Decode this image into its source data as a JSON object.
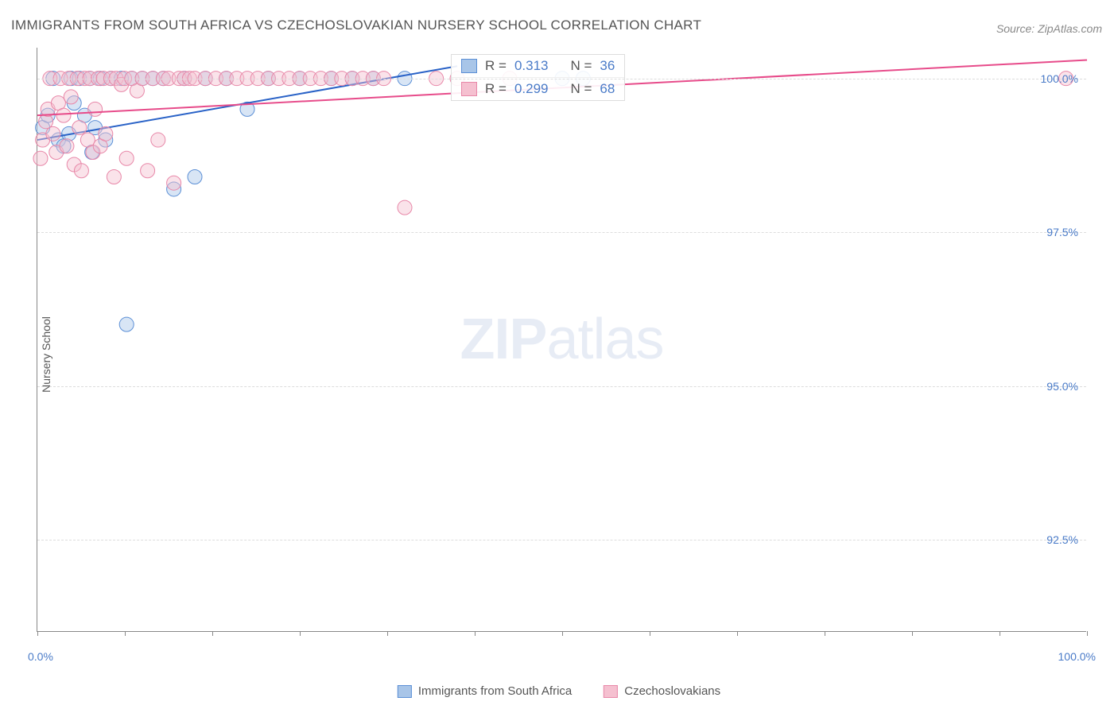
{
  "title": "IMMIGRANTS FROM SOUTH AFRICA VS CZECHOSLOVAKIAN NURSERY SCHOOL CORRELATION CHART",
  "source": "Source: ZipAtlas.com",
  "y_axis_label": "Nursery School",
  "watermark_bold": "ZIP",
  "watermark_light": "atlas",
  "chart": {
    "type": "scatter",
    "background_color": "#ffffff",
    "grid_color": "#dddddd",
    "axis_color": "#888888",
    "xlim": [
      0,
      100
    ],
    "ylim": [
      91.0,
      100.5
    ],
    "x_ticks": [
      0,
      8.3,
      16.7,
      25,
      33.3,
      41.7,
      50,
      58.3,
      66.7,
      75,
      83.3,
      91.7,
      100
    ],
    "x_tick_labels": {
      "first": "0.0%",
      "last": "100.0%"
    },
    "y_gridlines": [
      92.5,
      95.0,
      97.5,
      100.0
    ],
    "y_tick_labels": [
      "92.5%",
      "95.0%",
      "97.5%",
      "100.0%"
    ],
    "marker_radius": 9,
    "marker_opacity": 0.45,
    "line_width": 2,
    "series": [
      {
        "name": "Immigrants from South Africa",
        "color_fill": "#a8c5e8",
        "color_stroke": "#5b8fd6",
        "line_color": "#2962c7",
        "r_value": "0.313",
        "n_value": "36",
        "trend": {
          "x1": 0,
          "y1": 99.0,
          "x2": 40,
          "y2": 100.2
        },
        "points": [
          [
            0.5,
            99.2
          ],
          [
            1,
            99.4
          ],
          [
            1.5,
            100.0
          ],
          [
            2,
            99.0
          ],
          [
            2.5,
            98.9
          ],
          [
            3,
            99.1
          ],
          [
            3.2,
            100.0
          ],
          [
            3.5,
            99.6
          ],
          [
            4,
            100.0
          ],
          [
            4.5,
            99.4
          ],
          [
            5,
            100.0
          ],
          [
            5.2,
            98.8
          ],
          [
            5.5,
            99.2
          ],
          [
            6,
            100.0
          ],
          [
            6.5,
            99.0
          ],
          [
            7,
            100.0
          ],
          [
            8,
            100.0
          ],
          [
            8.5,
            96.0
          ],
          [
            9,
            100.0
          ],
          [
            10,
            100.0
          ],
          [
            11,
            100.0
          ],
          [
            12,
            100.0
          ],
          [
            13,
            98.2
          ],
          [
            14,
            100.0
          ],
          [
            15,
            98.4
          ],
          [
            16,
            100.0
          ],
          [
            18,
            100.0
          ],
          [
            20,
            99.5
          ],
          [
            22,
            100.0
          ],
          [
            25,
            100.0
          ],
          [
            28,
            100.0
          ],
          [
            30,
            100.0
          ],
          [
            32,
            100.0
          ],
          [
            35,
            100.0
          ],
          [
            50,
            100.0
          ],
          [
            52,
            100.0
          ]
        ]
      },
      {
        "name": "Czechoslovakians",
        "color_fill": "#f5c0d0",
        "color_stroke": "#e887a8",
        "line_color": "#e74b8a",
        "r_value": "0.299",
        "n_value": "68",
        "trend": {
          "x1": 0,
          "y1": 99.4,
          "x2": 100,
          "y2": 100.3
        },
        "points": [
          [
            0.3,
            98.7
          ],
          [
            0.5,
            99.0
          ],
          [
            0.8,
            99.3
          ],
          [
            1,
            99.5
          ],
          [
            1.2,
            100.0
          ],
          [
            1.5,
            99.1
          ],
          [
            1.8,
            98.8
          ],
          [
            2,
            99.6
          ],
          [
            2.2,
            100.0
          ],
          [
            2.5,
            99.4
          ],
          [
            2.8,
            98.9
          ],
          [
            3,
            100.0
          ],
          [
            3.2,
            99.7
          ],
          [
            3.5,
            98.6
          ],
          [
            3.8,
            100.0
          ],
          [
            4,
            99.2
          ],
          [
            4.2,
            98.5
          ],
          [
            4.5,
            100.0
          ],
          [
            4.8,
            99.0
          ],
          [
            5,
            100.0
          ],
          [
            5.3,
            98.8
          ],
          [
            5.5,
            99.5
          ],
          [
            5.8,
            100.0
          ],
          [
            6,
            98.9
          ],
          [
            6.3,
            100.0
          ],
          [
            6.5,
            99.1
          ],
          [
            7,
            100.0
          ],
          [
            7.3,
            98.4
          ],
          [
            7.5,
            100.0
          ],
          [
            8,
            99.9
          ],
          [
            8.3,
            100.0
          ],
          [
            8.5,
            98.7
          ],
          [
            9,
            100.0
          ],
          [
            9.5,
            99.8
          ],
          [
            10,
            100.0
          ],
          [
            10.5,
            98.5
          ],
          [
            11,
            100.0
          ],
          [
            11.5,
            99.0
          ],
          [
            12,
            100.0
          ],
          [
            12.5,
            100.0
          ],
          [
            13,
            98.3
          ],
          [
            13.5,
            100.0
          ],
          [
            14,
            100.0
          ],
          [
            14.5,
            100.0
          ],
          [
            15,
            100.0
          ],
          [
            16,
            100.0
          ],
          [
            17,
            100.0
          ],
          [
            18,
            100.0
          ],
          [
            19,
            100.0
          ],
          [
            20,
            100.0
          ],
          [
            21,
            100.0
          ],
          [
            22,
            100.0
          ],
          [
            23,
            100.0
          ],
          [
            24,
            100.0
          ],
          [
            25,
            100.0
          ],
          [
            26,
            100.0
          ],
          [
            27,
            100.0
          ],
          [
            28,
            100.0
          ],
          [
            29,
            100.0
          ],
          [
            30,
            100.0
          ],
          [
            31,
            100.0
          ],
          [
            32,
            100.0
          ],
          [
            33,
            100.0
          ],
          [
            35,
            97.9
          ],
          [
            38,
            100.0
          ],
          [
            40,
            100.0
          ],
          [
            45,
            100.0
          ],
          [
            98,
            100.0
          ]
        ]
      }
    ]
  },
  "legend": {
    "series1_label": "Immigrants from South Africa",
    "series2_label": "Czechoslovakians"
  },
  "stats_box": {
    "r_prefix": "R =",
    "n_prefix": "N ="
  }
}
